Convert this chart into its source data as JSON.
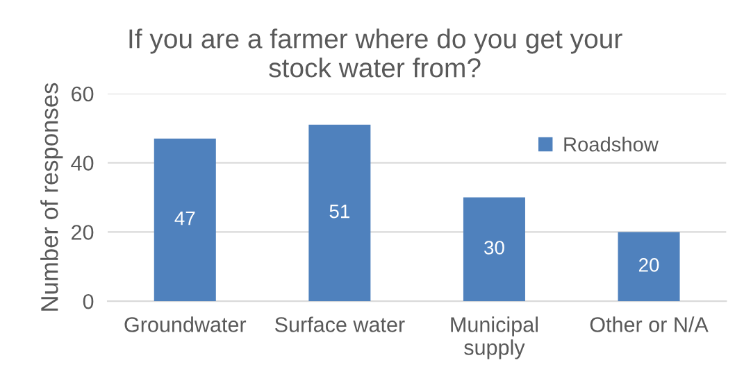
{
  "chart_data": {
    "type": "bar",
    "title": "If you are a farmer where do you get your\nstock water from?",
    "ylabel": "Number of responses",
    "categories": [
      "Groundwater",
      "Surface water",
      "Municipal\nsupply",
      "Other or N/A"
    ],
    "series": [
      {
        "name": "Roadshow",
        "color": "#4f81bd",
        "values": [
          47,
          51,
          30,
          20
        ]
      }
    ],
    "ylim": [
      0,
      60
    ],
    "yticks": [
      0,
      20,
      40,
      60
    ],
    "grid": "y",
    "legend": "top right",
    "data_labels": true
  }
}
